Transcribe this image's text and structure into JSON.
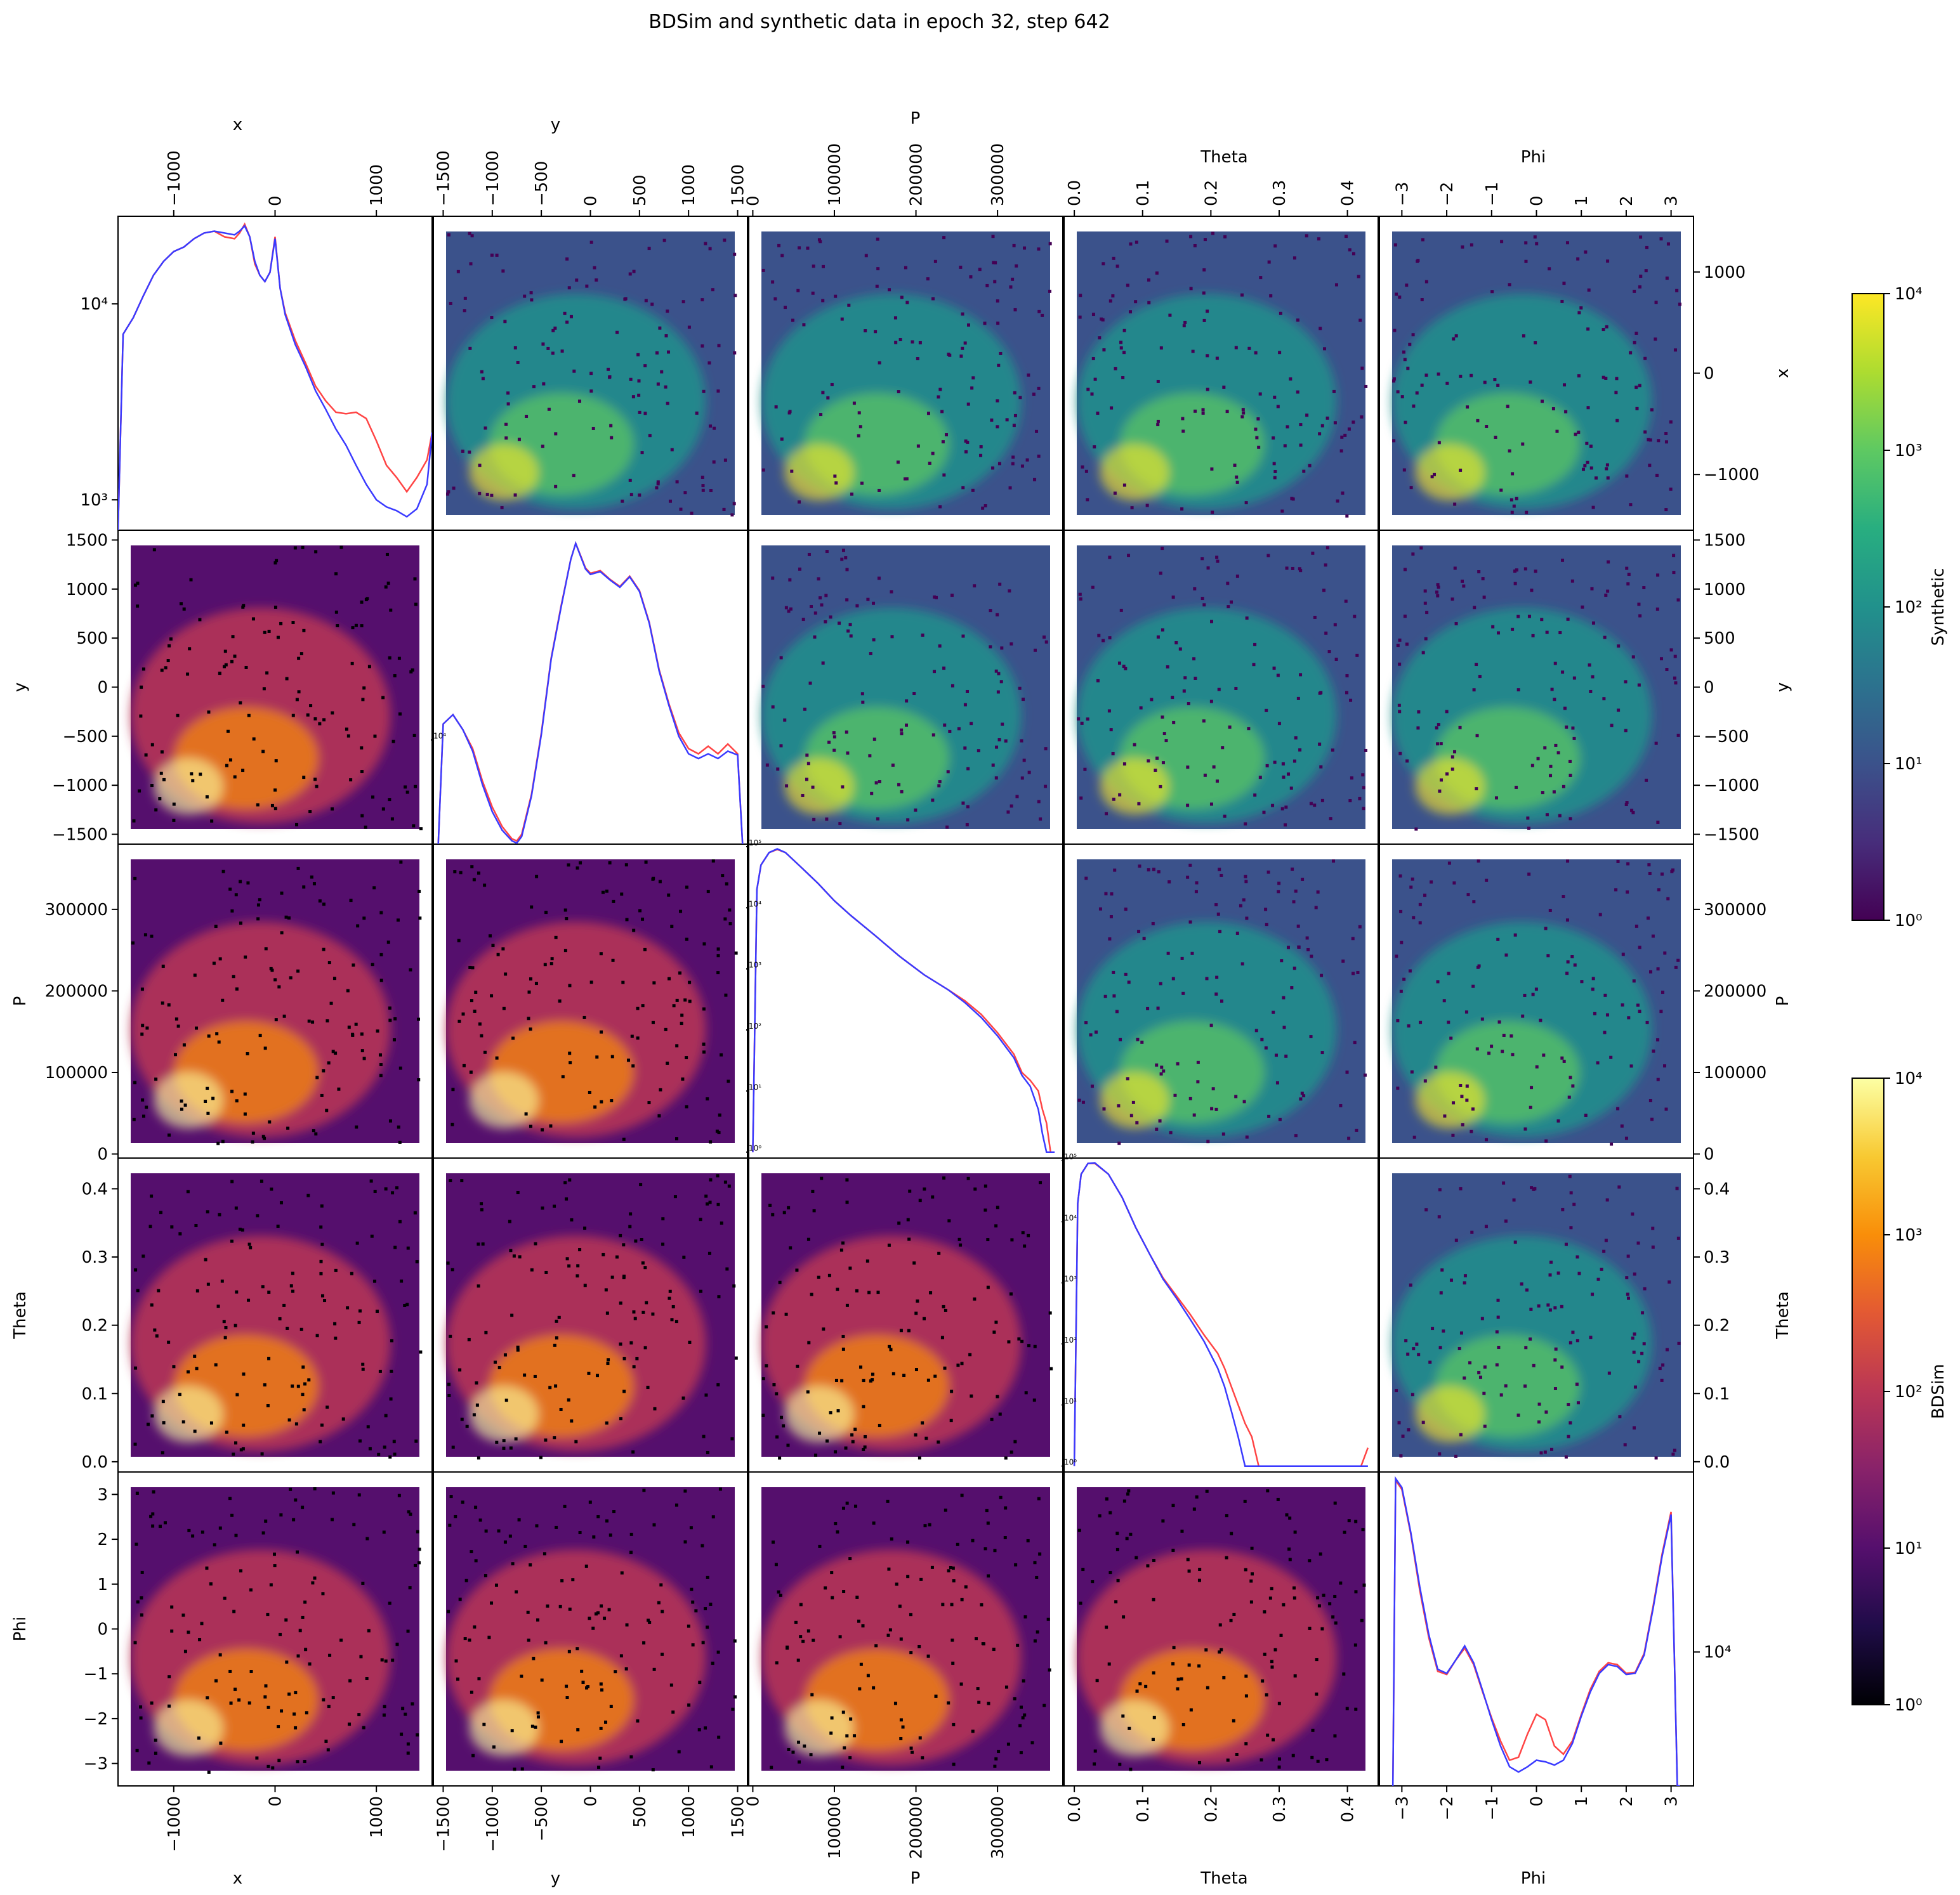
{
  "title": "BDSim and synthetic data in epoch 32, step 642",
  "variables": [
    "x",
    "y",
    "P",
    "Theta",
    "Phi"
  ],
  "colorbars": [
    {
      "label": "Synthetic",
      "colormap": "viridis",
      "ticks": [
        "10⁰",
        "10¹",
        "10²",
        "10³",
        "10⁴"
      ]
    },
    {
      "label": "BDSim",
      "colormap": "inferno",
      "ticks": [
        "10⁰",
        "10¹",
        "10²",
        "10³",
        "10⁴"
      ]
    }
  ],
  "colors": {
    "bdsim_hist": "#ff4444",
    "synthetic_hist": "#3a3aff",
    "frame": "#000000"
  },
  "chart_data": {
    "type": "heatmap",
    "layout": "pairplot 5x5; upper triangle = Synthetic (viridis, log color), lower triangle = BDSim (inferno, log color), diagonal = 1D histograms (red = BDSim, blue = Synthetic, log y)",
    "axes": {
      "x": {
        "range": [
          -1550,
          1550
        ],
        "ticks": [
          -1000,
          0,
          1000
        ],
        "tick_labels": [
          "−1000",
          "0",
          "1000"
        ]
      },
      "y": {
        "range": [
          -1600,
          1600
        ],
        "ticks": [
          -1500,
          -1000,
          -500,
          0,
          500,
          1000,
          1500
        ],
        "tick_labels": [
          "−1500",
          "−1000",
          "−500",
          "0",
          "500",
          "1000",
          "1500"
        ]
      },
      "P": {
        "range": [
          -5000,
          380000
        ],
        "ticks": [
          0,
          100000,
          200000,
          300000
        ],
        "tick_labels": [
          "0",
          "100000",
          "200000",
          "300000"
        ]
      },
      "Theta": {
        "range": [
          -0.015,
          0.445
        ],
        "ticks": [
          0.0,
          0.1,
          0.2,
          0.3,
          0.4
        ],
        "tick_labels": [
          "0.0",
          "0.1",
          "0.2",
          "0.3",
          "0.4"
        ]
      },
      "Phi": {
        "range": [
          -3.5,
          3.5
        ],
        "ticks": [
          -3,
          -2,
          -1,
          0,
          1,
          2,
          3
        ],
        "tick_labels": [
          "−3",
          "−2",
          "−1",
          "0",
          "1",
          "2",
          "3"
        ]
      }
    },
    "diagonal_histograms": [
      {
        "variable": "x",
        "ylim_log": [
          700,
          28000
        ],
        "y_ticks": [
          "10³",
          "10⁴"
        ],
        "series": [
          {
            "name": "BDSim",
            "x": [
              -1550,
              -1500,
              -1400,
              -1300,
              -1200,
              -1100,
              -1000,
              -900,
              -800,
              -700,
              -600,
              -500,
              -400,
              -350,
              -300,
              -250,
              -200,
              -150,
              -100,
              -50,
              0,
              50,
              100,
              200,
              300,
              400,
              500,
              600,
              700,
              800,
              900,
              1000,
              1100,
              1200,
              1300,
              1400,
              1500,
              1550
            ],
            "y": [
              700,
              7000,
              8500,
              11000,
              14000,
              16500,
              18500,
              19500,
              21500,
              23000,
              23500,
              22000,
              21500,
              23000,
              25500,
              22000,
              16000,
              14000,
              13000,
              14500,
              22000,
              12000,
              9000,
              6500,
              5000,
              3800,
              3200,
              2800,
              2750,
              2800,
              2600,
              2000,
              1500,
              1300,
              1100,
              1300,
              1600,
              2200
            ]
          },
          {
            "name": "Synthetic",
            "x": [
              -1550,
              -1500,
              -1400,
              -1300,
              -1200,
              -1100,
              -1000,
              -900,
              -800,
              -700,
              -600,
              -500,
              -400,
              -350,
              -300,
              -250,
              -200,
              -150,
              -100,
              -50,
              0,
              50,
              100,
              200,
              300,
              400,
              500,
              600,
              700,
              800,
              900,
              1000,
              1100,
              1200,
              1300,
              1400,
              1500,
              1550
            ],
            "y": [
              700,
              7000,
              8500,
              11000,
              14000,
              16500,
              18500,
              19500,
              21500,
              23000,
              23500,
              23000,
              22500,
              23500,
              25000,
              22000,
              16500,
              14000,
              13000,
              14500,
              21500,
              12000,
              8800,
              6200,
              4800,
              3600,
              2900,
              2300,
              1900,
              1500,
              1200,
              1000,
              920,
              880,
              820,
              900,
              1200,
              2200
            ]
          }
        ]
      },
      {
        "variable": "y",
        "ylim_log": [
          700,
          2100000
        ],
        "y_ticks": [
          "10⁴"
        ],
        "series": [
          {
            "name": "BDSim",
            "x": [
              -1550,
              -1500,
              -1400,
              -1300,
              -1200,
              -1100,
              -1000,
              -900,
              -800,
              -750,
              -700,
              -600,
              -500,
              -400,
              -300,
              -200,
              -150,
              -100,
              -50,
              0,
              100,
              200,
              300,
              400,
              500,
              600,
              700,
              800,
              900,
              1000,
              1100,
              1200,
              1300,
              1400,
              1500,
              1550
            ],
            "y": [
              700,
              15000,
              19000,
              13000,
              8000,
              3500,
              1800,
              1100,
              800,
              760,
              900,
              2500,
              12000,
              80000,
              300000,
              1000000,
              1500000,
              1100000,
              800000,
              700000,
              750000,
              600000,
              500000,
              650000,
              450000,
              200000,
              60000,
              25000,
              12000,
              8000,
              7000,
              8500,
              7000,
              9000,
              7000,
              700
            ]
          },
          {
            "name": "Synthetic",
            "x": [
              -1550,
              -1500,
              -1400,
              -1300,
              -1200,
              -1100,
              -1000,
              -900,
              -800,
              -750,
              -700,
              -600,
              -500,
              -400,
              -300,
              -200,
              -150,
              -100,
              -50,
              0,
              100,
              200,
              300,
              400,
              500,
              600,
              700,
              800,
              900,
              1000,
              1100,
              1200,
              1300,
              1400,
              1500,
              1550
            ],
            "y": [
              700,
              15000,
              19000,
              13000,
              7500,
              3200,
              1600,
              1000,
              760,
              720,
              850,
              2400,
              11500,
              78000,
              290000,
              1000000,
              1500000,
              1080000,
              780000,
              680000,
              730000,
              590000,
              490000,
              640000,
              440000,
              195000,
              58000,
              24000,
              11000,
              7000,
              6200,
              7000,
              6200,
              7500,
              6800,
              700
            ]
          }
        ]
      },
      {
        "variable": "P",
        "ylim_log": [
          0.8,
          110000
        ],
        "y_ticks": [
          "10⁰",
          "10¹",
          "10²",
          "10³",
          "10⁴",
          "10⁵"
        ],
        "series": [
          {
            "name": "BDSim",
            "x": [
              0,
              5000,
              10000,
              20000,
              30000,
              40000,
              60000,
              80000,
              100000,
              120000,
              150000,
              180000,
              210000,
              240000,
              260000,
              280000,
              300000,
              320000,
              330000,
              340000,
              350000,
              355000,
              360000,
              365000,
              370000
            ],
            "y": [
              1,
              20000,
              50000,
              80000,
              90000,
              80000,
              45000,
              25000,
              13000,
              7500,
              3500,
              1600,
              800,
              450,
              300,
              180,
              90,
              40,
              20,
              15,
              10,
              5,
              3,
              1,
              1
            ]
          },
          {
            "name": "Synthetic",
            "x": [
              0,
              5000,
              10000,
              20000,
              30000,
              40000,
              60000,
              80000,
              100000,
              120000,
              150000,
              180000,
              210000,
              240000,
              260000,
              280000,
              300000,
              320000,
              330000,
              340000,
              350000,
              355000,
              360000,
              365000,
              370000
            ],
            "y": [
              1,
              20000,
              50000,
              80000,
              92000,
              80000,
              45000,
              25000,
              13000,
              7500,
              3500,
              1600,
              800,
              450,
              280,
              160,
              80,
              35,
              18,
              12,
              5,
              2,
              1,
              1,
              1
            ]
          }
        ]
      },
      {
        "variable": "Theta",
        "ylim_log": [
          0.8,
          110000
        ],
        "y_ticks": [
          "10⁰",
          "10¹",
          "10²",
          "10³",
          "10⁴",
          "10⁵"
        ],
        "series": [
          {
            "name": "BDSim",
            "x": [
              0.0,
              0.005,
              0.01,
              0.02,
              0.03,
              0.05,
              0.07,
              0.09,
              0.11,
              0.13,
              0.15,
              0.17,
              0.19,
              0.21,
              0.22,
              0.23,
              0.24,
              0.25,
              0.26,
              0.27,
              0.28,
              0.29,
              0.3,
              0.31,
              0.32,
              0.42,
              0.43
            ],
            "y": [
              1,
              20000,
              60000,
              90000,
              90000,
              60000,
              25000,
              8000,
              3000,
              1200,
              600,
              300,
              140,
              70,
              40,
              20,
              10,
              5,
              3,
              1,
              1,
              1,
              1,
              1,
              1,
              1,
              2
            ]
          },
          {
            "name": "Synthetic",
            "x": [
              0.0,
              0.005,
              0.01,
              0.02,
              0.03,
              0.05,
              0.07,
              0.09,
              0.11,
              0.13,
              0.15,
              0.17,
              0.19,
              0.21,
              0.22,
              0.23,
              0.24,
              0.25,
              0.26,
              0.27,
              0.28,
              0.29,
              0.3,
              0.31,
              0.32,
              0.42,
              0.43
            ],
            "y": [
              1,
              20000,
              60000,
              90000,
              92000,
              60000,
              25000,
              8000,
              3000,
              1150,
              550,
              250,
              110,
              40,
              20,
              8,
              3,
              1,
              1,
              1,
              1,
              1,
              1,
              1,
              1,
              1,
              1
            ]
          }
        ]
      },
      {
        "variable": "Phi",
        "ylim_log": [
          1800,
          100000
        ],
        "y_ticks": [
          "10⁴"
        ],
        "series": [
          {
            "name": "BDSim",
            "x": [
              -3.2,
              -3.14,
              -3.0,
              -2.8,
              -2.6,
              -2.4,
              -2.2,
              -2.0,
              -1.8,
              -1.6,
              -1.4,
              -1.2,
              -1.0,
              -0.8,
              -0.6,
              -0.4,
              -0.2,
              0.0,
              0.2,
              0.4,
              0.6,
              0.8,
              1.0,
              1.2,
              1.4,
              1.6,
              1.8,
              2.0,
              2.2,
              2.4,
              2.6,
              2.8,
              3.0,
              3.14,
              3.2
            ],
            "y": [
              1800,
              90000,
              80000,
              45000,
              22000,
              12000,
              7800,
              7500,
              9000,
              10500,
              8500,
              6000,
              4300,
              3200,
              2500,
              2600,
              3500,
              4500,
              4200,
              3000,
              2700,
              3200,
              4500,
              6200,
              7800,
              8700,
              8500,
              7600,
              7700,
              9800,
              18000,
              35000,
              60000,
              1800,
              1800
            ]
          },
          {
            "name": "Synthetic",
            "x": [
              -3.2,
              -3.14,
              -3.0,
              -2.8,
              -2.6,
              -2.4,
              -2.2,
              -2.0,
              -1.8,
              -1.6,
              -1.4,
              -1.2,
              -1.0,
              -0.8,
              -0.6,
              -0.4,
              -0.2,
              0.0,
              0.2,
              0.4,
              0.6,
              0.8,
              1.0,
              1.2,
              1.4,
              1.6,
              1.8,
              2.0,
              2.2,
              2.4,
              2.6,
              2.8,
              3.0,
              3.14,
              3.2
            ],
            "y": [
              1800,
              92000,
              82000,
              46000,
              23000,
              12500,
              8000,
              7600,
              9000,
              10800,
              8700,
              6100,
              4200,
              3000,
              2300,
              2150,
              2300,
              2500,
              2450,
              2350,
              2500,
              3100,
              4400,
              6000,
              7600,
              8500,
              8300,
              7500,
              7600,
              9600,
              17500,
              34000,
              58000,
              1800,
              1800
            ]
          }
        ]
      }
    ]
  }
}
